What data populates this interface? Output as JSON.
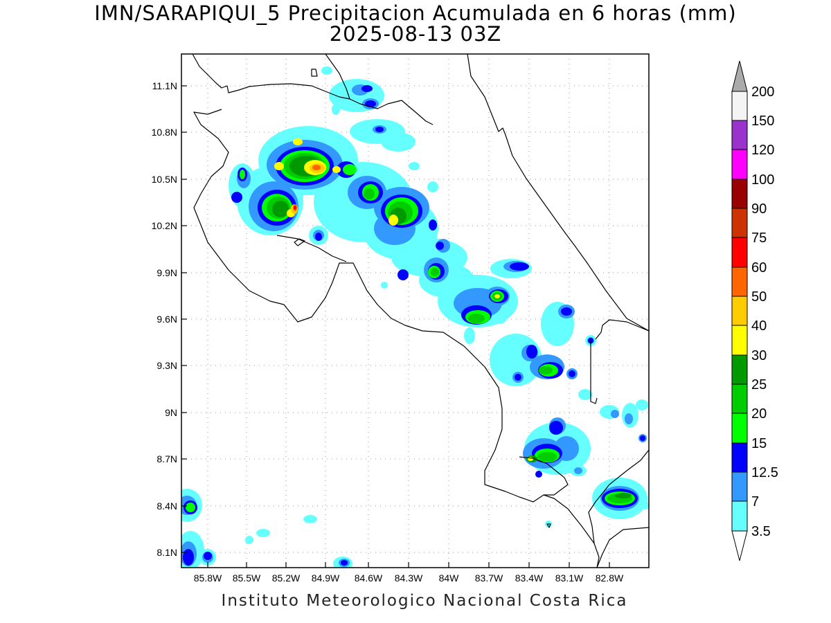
{
  "title": "IMN/SARAPIQUI_5 Precipitacion Acumulada en 6 horas (mm)",
  "subtitle": "2025-08-13 03Z",
  "credit": "Instituto Meteorologico Nacional Costa Rica",
  "map": {
    "lat_labels": [
      "11.1N",
      "10.8N",
      "10.5N",
      "10.2N",
      "9.9N",
      "9.6N",
      "9.3N",
      "9N",
      "8.7N",
      "8.4N",
      "8.1N"
    ],
    "lon_labels": [
      "85.8W",
      "85.5W",
      "85.2W",
      "84.9W",
      "84.6W",
      "84.3W",
      "84W",
      "83.7W",
      "83.4W",
      "83.1W",
      "82.8W"
    ],
    "grid": "dotted"
  },
  "colorbar": {
    "labels": [
      "200",
      "150",
      "120",
      "100",
      "90",
      "75",
      "60",
      "50",
      "40",
      "30",
      "25",
      "20",
      "15",
      "12.5",
      "7",
      "3.5"
    ],
    "colors_top_to_bottom": [
      "#f4f4f4",
      "#9933cc",
      "#ff00ff",
      "#990000",
      "#cc3300",
      "#ff0000",
      "#ff6600",
      "#ffcc00",
      "#ffff00",
      "#009900",
      "#00cc00",
      "#00ff00",
      "#0000ff",
      "#3399ff",
      "#66ffff"
    ],
    "top_arrow_color": "#aaaaaa",
    "bottom_arrow_color": "#ffffff"
  },
  "palette": {
    "light_cyan": "#66ffff",
    "light_blue": "#3399ff",
    "blue": "#0000ff",
    "green_light": "#00ff00",
    "green": "#00cc00",
    "green_dark": "#009900",
    "yellow": "#ffff00",
    "gold": "#ffcc00",
    "orange": "#ff6600",
    "red": "#ff0000"
  }
}
